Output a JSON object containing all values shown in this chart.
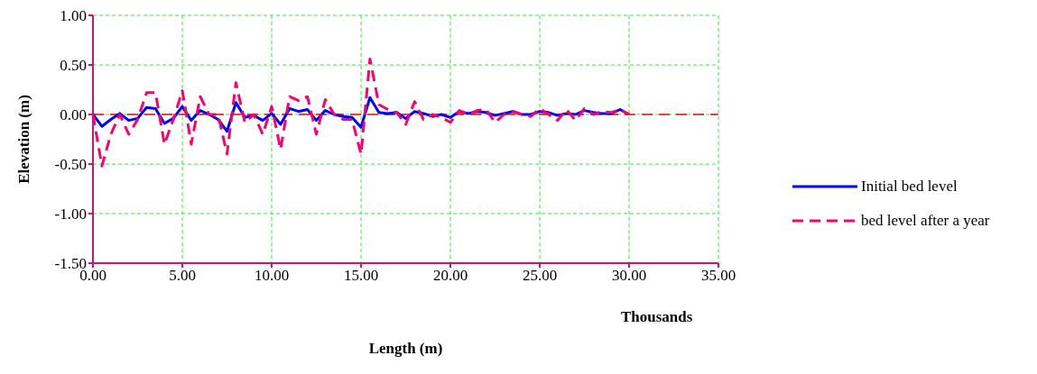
{
  "chart_data": {
    "type": "line",
    "xlabel": "Length (m)",
    "ylabel": "Elevation (m)",
    "annotations": [
      "Thousands"
    ],
    "x": [
      0,
      0.5,
      1,
      1.5,
      2,
      2.5,
      3,
      3.5,
      4,
      4.5,
      5,
      5.5,
      6,
      6.5,
      7,
      7.5,
      8,
      8.5,
      9,
      9.5,
      10,
      10.5,
      11,
      11.5,
      12,
      12.5,
      13,
      13.5,
      14,
      14.5,
      15,
      15.5,
      16,
      16.5,
      17,
      17.5,
      18,
      18.5,
      19,
      19.5,
      20,
      20.5,
      21,
      21.5,
      22,
      22.5,
      23,
      23.5,
      24,
      24.5,
      25,
      25.5,
      26,
      26.5,
      27,
      27.5,
      28,
      28.5,
      29,
      29.5,
      30
    ],
    "series": [
      {
        "name": "Initial bed level",
        "color": "#0000ff",
        "line_style": "solid",
        "values": [
          0,
          -0.12,
          -0.05,
          0.01,
          -0.06,
          -0.04,
          0.07,
          0.06,
          -0.09,
          -0.04,
          0.08,
          -0.06,
          0.04,
          0,
          -0.05,
          -0.17,
          0.12,
          -0.03,
          -0.01,
          -0.06,
          0.01,
          -0.1,
          0.06,
          0.03,
          0.05,
          -0.06,
          0.04,
          0,
          -0.02,
          -0.03,
          -0.13,
          0.17,
          0.02,
          0.01,
          0.02,
          -0.04,
          0.03,
          0.01,
          -0.02,
          0,
          -0.03,
          0.03,
          0.01,
          0.03,
          0.02,
          -0.01,
          0.01,
          0.03,
          0,
          0,
          0.03,
          0.02,
          -0.01,
          0.01,
          0,
          0.04,
          0.02,
          0.01,
          0.01,
          0.05,
          0
        ]
      },
      {
        "name": "bed level after a year",
        "color": "#ff0066",
        "line_style": "dashed",
        "values": [
          0,
          -0.52,
          -0.2,
          0,
          -0.2,
          -0.05,
          0.22,
          0.22,
          -0.3,
          -0.05,
          0.24,
          -0.3,
          0.18,
          0,
          0,
          -0.4,
          0.32,
          -0.08,
          0,
          -0.2,
          0.08,
          -0.35,
          0.18,
          0.14,
          0.18,
          -0.2,
          0.15,
          0,
          -0.05,
          -0.05,
          -0.4,
          0.56,
          0.1,
          0.05,
          0.02,
          -0.1,
          0.13,
          -0.05,
          0,
          -0.03,
          -0.08,
          0.04,
          0,
          0.04,
          0.05,
          -0.08,
          0,
          0.03,
          0,
          -0.02,
          0.06,
          0,
          -0.06,
          0.05,
          -0.06,
          0.06,
          0,
          0.03,
          0.02,
          0.05,
          0
        ]
      }
    ],
    "xlim": [
      0,
      35
    ],
    "xticks": [
      {
        "value": 0,
        "label": "0.00"
      },
      {
        "value": 5,
        "label": "5.00"
      },
      {
        "value": 10,
        "label": "10.00"
      },
      {
        "value": 15,
        "label": "15.00"
      },
      {
        "value": 20,
        "label": "20.00"
      },
      {
        "value": 25,
        "label": "25.00"
      },
      {
        "value": 30,
        "label": "30.00"
      },
      {
        "value": 35,
        "label": "35.00"
      }
    ],
    "ylim": [
      -1.5,
      1
    ],
    "yticks": [
      {
        "value": -1.5,
        "label": "-1.50"
      },
      {
        "value": -1,
        "label": "-1.00"
      },
      {
        "value": -0.5,
        "label": "-0.50"
      },
      {
        "value": 0,
        "label": "0.00"
      },
      {
        "value": 0.5,
        "label": "0.50"
      },
      {
        "value": 1,
        "label": "1.00"
      }
    ],
    "ref_lines": [
      {
        "axis": "y",
        "value": 0,
        "color": "#ff0000",
        "line_style": "dashed"
      }
    ],
    "grid": true,
    "legend": "right",
    "marker": "none"
  }
}
